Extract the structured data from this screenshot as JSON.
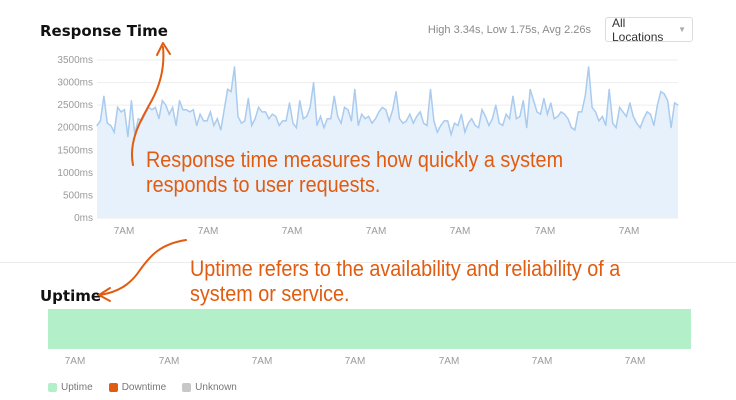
{
  "response_time": {
    "title": "Response Time",
    "stats": "High 3.34s, Low 1.75s, Avg 2.26s",
    "location_selector": {
      "selected": "All Locations"
    }
  },
  "chart_data": [
    {
      "type": "area",
      "title": "Response Time",
      "ylabel": "",
      "xlabel": "",
      "ylim": [
        0,
        3500
      ],
      "y_ticks": [
        "0ms",
        "500ms",
        "1000ms",
        "1500ms",
        "2000ms",
        "2500ms",
        "3000ms",
        "3500ms"
      ],
      "x_ticks": [
        "7AM",
        "7AM",
        "7AM",
        "7AM",
        "7AM",
        "7AM",
        "7AM"
      ],
      "grid": true,
      "colors": {
        "line": "#a9cbee",
        "fill": "#e7f1fc"
      },
      "series": [
        {
          "values": [
            2050,
            2150,
            2700,
            2100,
            2050,
            1900,
            2450,
            2350,
            2400,
            1800,
            2600,
            1850,
            2200,
            2150,
            2300,
            2450,
            2400,
            2450,
            2200,
            2600,
            2500,
            2300,
            2450,
            2050,
            2600,
            2400,
            2400,
            2350,
            2400,
            2050,
            2300,
            2150,
            2150,
            2350,
            2050,
            2200,
            1950,
            2400,
            2850,
            2800,
            3350,
            2250,
            2100,
            2150,
            2650,
            2050,
            2200,
            2450,
            2350,
            2350,
            2200,
            2300,
            2250,
            2050,
            2150,
            2150,
            2550,
            2100,
            2000,
            2600,
            2200,
            2250,
            2450,
            3000,
            2050,
            2250,
            2000,
            2200,
            2200,
            2700,
            2250,
            2100,
            2450,
            2400,
            2150,
            2850,
            2050,
            2300,
            2200,
            2250,
            2100,
            2200,
            2350,
            2450,
            2400,
            2150,
            2400,
            2800,
            2200,
            2100,
            2150,
            2300,
            2100,
            2250,
            2350,
            2100,
            2050,
            2850,
            2150,
            1900,
            2050,
            2150,
            2150,
            1850,
            2100,
            2050,
            2300,
            1900,
            2100,
            2200,
            2050,
            2000,
            2400,
            2250,
            2050,
            2200,
            2500,
            2100,
            2050,
            2300,
            2200,
            2700,
            2200,
            2250,
            2600,
            2000,
            2850,
            2600,
            2350,
            2300,
            2650,
            2300,
            2550,
            2200,
            2250,
            2350,
            2300,
            2200,
            2000,
            1950,
            2350,
            2350,
            2700,
            3350,
            2450,
            2350,
            2150,
            2250,
            2050,
            2850,
            2100,
            2000,
            2450,
            2350,
            2250,
            2550,
            2250,
            2100,
            2000,
            2200,
            2350,
            2300,
            2050,
            2500,
            2800,
            2750,
            2600,
            2000,
            2550,
            2500
          ]
        }
      ]
    },
    {
      "type": "bar",
      "title": "Uptime",
      "x_ticks": [
        "7AM",
        "7AM",
        "7AM",
        "7AM",
        "7AM",
        "7AM",
        "7AM"
      ],
      "legend": [
        {
          "label": "Uptime",
          "color": "#b3f0c9"
        },
        {
          "label": "Downtime",
          "color": "#e15c10"
        },
        {
          "label": "Unknown",
          "color": "#c7c7c7"
        }
      ],
      "uptime_fraction": 1.0
    }
  ],
  "uptime": {
    "title": "Uptime"
  },
  "annotations": {
    "response_time": [
      "Response time measures how quickly a system",
      "responds to user requests."
    ],
    "uptime": [
      "Uptime refers to the availability and reliability of a",
      "system or service."
    ]
  }
}
